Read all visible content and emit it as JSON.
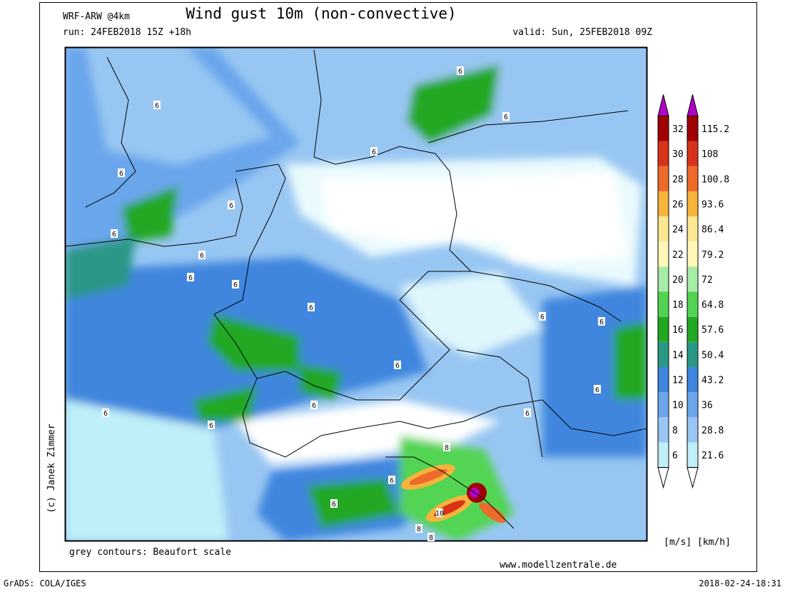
{
  "header": {
    "model": "WRF-ARW @4km",
    "title": "Wind gust 10m (non-convective)",
    "run": "run: 24FEB2018 15Z +18h",
    "valid": "valid: Sun, 25FEB2018 09Z"
  },
  "map": {
    "credit": "(c) Janek Zimmer",
    "note": "grey contours: Beaufort scale",
    "website": "www.modellzentrale.de",
    "contour_labels": [
      "6",
      "6",
      "6",
      "6",
      "6",
      "6",
      "6",
      "6",
      "6",
      "6",
      "6",
      "6",
      "6",
      "6",
      "6",
      "6",
      "8",
      "6",
      "6",
      "10",
      "6",
      "6",
      "6",
      "8",
      "8"
    ]
  },
  "colorbar": {
    "levels_ms": [
      6,
      8,
      10,
      12,
      14,
      16,
      18,
      20,
      22,
      24,
      26,
      28,
      30,
      32
    ],
    "levels_kmh": [
      21.6,
      28.8,
      36,
      43.2,
      50.4,
      57.6,
      64.8,
      72,
      79.2,
      86.4,
      93.6,
      100.8,
      108,
      115.2
    ],
    "colors": [
      "#bfeff8",
      "#98c6f2",
      "#6aa6ec",
      "#3f86de",
      "#2b9886",
      "#22a822",
      "#52d452",
      "#a6eca6",
      "#fff8b8",
      "#fbe890",
      "#f6b43c",
      "#ee6a2a",
      "#d8321a",
      "#a00000"
    ],
    "over_color": "#b400c8",
    "under_color": "#ffffff",
    "units": "[m/s] [km/h]"
  },
  "footer": {
    "software": "GrADS: COLA/IGES",
    "timestamp": "2018-02-24-18:31"
  }
}
